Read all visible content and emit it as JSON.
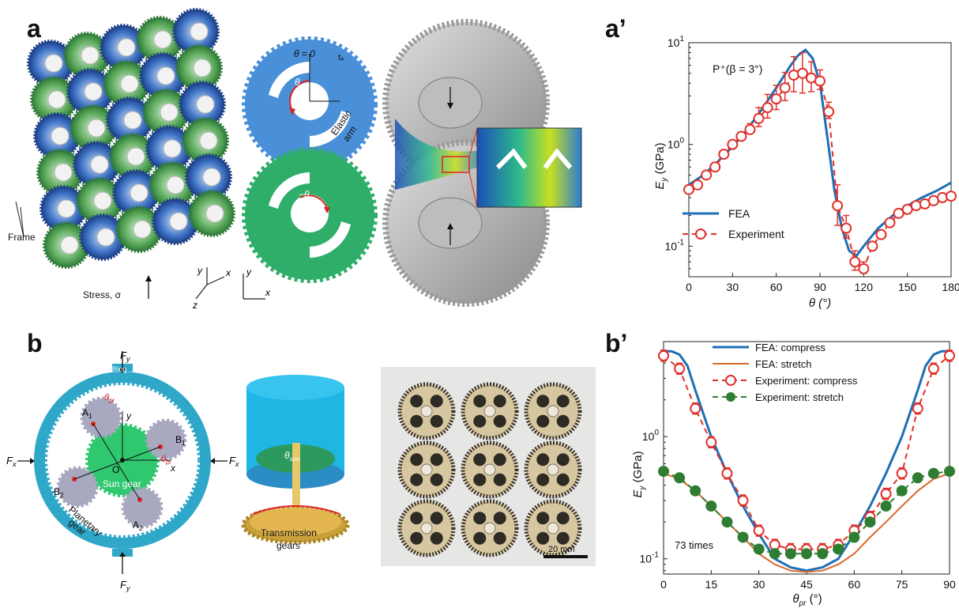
{
  "panels": {
    "a": "a",
    "a_prime": "a’",
    "b": "b",
    "b_prime": "b’"
  },
  "illustration_a": {
    "frame_label": "Frame",
    "stress_label": "Stress, σ",
    "axis_x": "x",
    "axis_y": "y",
    "axis_z": "z",
    "theta_zero": "θ = 0",
    "theta": "θ",
    "minus_theta": "−θ",
    "t_a": "tₐ",
    "elastic_arm_1": "Elastic",
    "elastic_arm_2": "arm"
  },
  "illustration_b": {
    "fy_top": "F",
    "fy_sub": "y",
    "fx": "F",
    "fx_sub": "x",
    "ring": "Ring",
    "sun_gear": "Sun gear",
    "planetary_1": "Planetary",
    "planetary_2": "gear",
    "A1": "A",
    "A1_sub": "1",
    "A2": "A",
    "A2_sub": "2",
    "B1": "B",
    "B1_sub": "1",
    "B2": "B",
    "B2_sub": "2",
    "O": "O",
    "x": "x",
    "y": "y",
    "theta_pr": "θ",
    "theta_pr_sub": "pr",
    "theta_sun": "θ",
    "theta_sun_sub": "sun",
    "transmission_1": "Transmission",
    "transmission_2": "gears",
    "scale_bar": "20 mm"
  },
  "colors": {
    "blue_gear": "#4a90d9",
    "green_gear": "#2fae6a",
    "ring_blue": "#2fa7c9",
    "fea_blue": "#1f6fb5",
    "exp_red": "#e0302a",
    "stretch_orange": "#d9692a",
    "exp_green": "#2e7d32"
  },
  "chart_data": [
    {
      "type": "line",
      "annotation": "P⁺(β = 3°)",
      "xlabel": "θ (°)",
      "ylabel_main": "E",
      "ylabel_sub": "y",
      "ylabel_unit": " (GPa)",
      "xlim": [
        0,
        180
      ],
      "ylim": [
        0.05,
        10
      ],
      "yscale": "log",
      "xticks": [
        0,
        30,
        60,
        90,
        120,
        150,
        180
      ],
      "yticks": [
        {
          "value": 10,
          "label": "10",
          "sup": "1"
        },
        {
          "value": 1,
          "label": "10",
          "sup": "0"
        },
        {
          "value": 0.1,
          "label": "10",
          "sup": "-1"
        }
      ],
      "legend_position": "bottom-left",
      "series": [
        {
          "name": "FEA",
          "style": "solid",
          "x": [
            0,
            10,
            20,
            30,
            40,
            50,
            60,
            70,
            75,
            80,
            85,
            90,
            95,
            100,
            105,
            110,
            115,
            120,
            130,
            140,
            150,
            160,
            170,
            180
          ],
          "y": [
            0.4,
            0.5,
            0.68,
            0.95,
            1.4,
            2.2,
            3.6,
            6.0,
            7.5,
            8.5,
            7.0,
            4.0,
            1.2,
            0.35,
            0.15,
            0.09,
            0.08,
            0.1,
            0.15,
            0.2,
            0.25,
            0.3,
            0.35,
            0.42
          ]
        },
        {
          "name": "Experiment",
          "style": "dashed-markers",
          "x": [
            0,
            6,
            12,
            18,
            24,
            30,
            36,
            42,
            48,
            54,
            60,
            66,
            72,
            78,
            84,
            90,
            96,
            102,
            108,
            114,
            120,
            126,
            132,
            138,
            144,
            150,
            156,
            162,
            168,
            174,
            180
          ],
          "y": [
            0.36,
            0.4,
            0.5,
            0.6,
            0.8,
            1.0,
            1.2,
            1.4,
            1.8,
            2.3,
            2.8,
            3.6,
            4.8,
            5.0,
            4.5,
            4.2,
            2.1,
            0.25,
            0.15,
            0.07,
            0.06,
            0.1,
            0.13,
            0.17,
            0.21,
            0.23,
            0.25,
            0.26,
            0.28,
            0.3,
            0.31
          ],
          "err": [
            0,
            0,
            0,
            0,
            0,
            0,
            0,
            0.2,
            0.5,
            0.8,
            1.0,
            1.5,
            2.5,
            3.0,
            2.0,
            1.2,
            0.5,
            0.15,
            0.05,
            0.02,
            0.01,
            0,
            0,
            0,
            0,
            0,
            0,
            0,
            0,
            0,
            0
          ]
        }
      ]
    },
    {
      "type": "line",
      "annotation": "73 times",
      "xlabel": "θ",
      "xlabel_sub": "pr",
      "xlabel_unit": " (°)",
      "ylabel_main": "E",
      "ylabel_sub": "y",
      "ylabel_unit": " (GPa)",
      "xlim": [
        0,
        90
      ],
      "ylim": [
        0.075,
        6
      ],
      "yscale": "log",
      "xticks": [
        0,
        15,
        30,
        45,
        60,
        75,
        90
      ],
      "yticks": [
        {
          "value": 1,
          "label": "10",
          "sup": "0"
        },
        {
          "value": 0.1,
          "label": "10",
          "sup": "-1"
        }
      ],
      "legend_position": "top",
      "series": [
        {
          "name": "FEA: compress",
          "style": "solid-blue",
          "x": [
            0,
            2.5,
            5,
            7.5,
            10,
            15,
            20,
            25,
            30,
            35,
            40,
            45,
            50,
            55,
            60,
            65,
            70,
            75,
            80,
            82.5,
            85,
            87.5,
            90
          ],
          "y": [
            5.0,
            5.0,
            4.7,
            3.8,
            2.4,
            1.0,
            0.5,
            0.27,
            0.16,
            0.1,
            0.085,
            0.08,
            0.085,
            0.1,
            0.16,
            0.27,
            0.5,
            1.0,
            2.4,
            3.8,
            4.7,
            5.0,
            5.0
          ]
        },
        {
          "name": "FEA: stretch",
          "style": "solid-orange",
          "x": [
            0,
            5,
            10,
            15,
            20,
            25,
            30,
            35,
            40,
            45,
            50,
            55,
            60,
            65,
            70,
            75,
            80,
            85,
            90
          ],
          "y": [
            0.5,
            0.45,
            0.36,
            0.27,
            0.2,
            0.15,
            0.11,
            0.09,
            0.08,
            0.078,
            0.08,
            0.09,
            0.11,
            0.15,
            0.2,
            0.27,
            0.36,
            0.45,
            0.5
          ]
        },
        {
          "name": "Experiment: compress",
          "style": "dashed-red-open",
          "x": [
            0,
            5,
            10,
            15,
            20,
            25,
            30,
            35,
            40,
            45,
            50,
            55,
            60,
            65,
            70,
            75,
            80,
            85,
            90
          ],
          "y": [
            4.6,
            3.6,
            1.7,
            0.9,
            0.5,
            0.3,
            0.17,
            0.13,
            0.12,
            0.12,
            0.12,
            0.13,
            0.17,
            0.22,
            0.34,
            0.5,
            1.7,
            3.6,
            4.6
          ]
        },
        {
          "name": "Experiment: stretch",
          "style": "dashed-green-filled",
          "x": [
            0,
            5,
            10,
            15,
            20,
            25,
            30,
            35,
            40,
            45,
            50,
            55,
            60,
            65,
            70,
            75,
            80,
            85,
            90
          ],
          "y": [
            0.52,
            0.46,
            0.36,
            0.27,
            0.2,
            0.15,
            0.12,
            0.11,
            0.11,
            0.11,
            0.11,
            0.12,
            0.15,
            0.2,
            0.27,
            0.36,
            0.46,
            0.5,
            0.52
          ]
        }
      ]
    }
  ]
}
